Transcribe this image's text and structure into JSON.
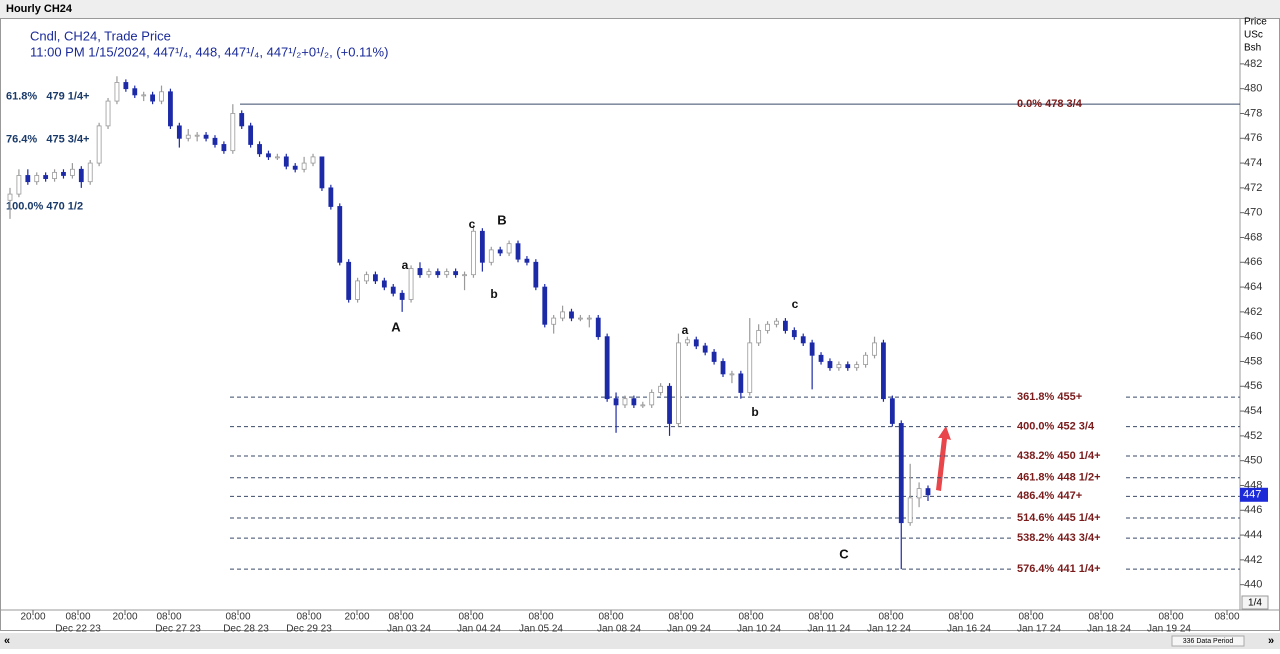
{
  "window_title": "Hourly CH24",
  "chart_data": {
    "type": "candlestick",
    "legend_line1": "Cndl, CH24, Trade Price",
    "legend_line2": "11:00 PM 1/15/2024, 447¹/₄, 448, 447¹/₄, 447¹/₂+0¹/₂, (+0.11%)",
    "axis_title": [
      "Price",
      "USc",
      "Bsh"
    ],
    "ylim": [
      438.2,
      485.7
    ],
    "yticks": [
      440,
      442,
      444,
      446,
      448,
      450,
      452,
      454,
      456,
      458,
      460,
      462,
      464,
      466,
      468,
      470,
      472,
      474,
      476,
      478,
      480,
      482
    ],
    "x_time_labels": [
      "20:00",
      "08:00",
      "20:00",
      "08:00",
      "08:00",
      "08:00",
      "20:00",
      "08:00",
      "08:00",
      "08:00",
      "08:00",
      "08:00",
      "08:00",
      "08:00",
      "08:00",
      "08:00",
      "08:00",
      "08:00",
      "08:00",
      "08:00"
    ],
    "x_date_labels": [
      "Dec 22 23",
      "Dec 27 23",
      "Dec 28 23",
      "Dec 29 23",
      "Jan 03 24",
      "Jan 04 24",
      "Jan 05 24",
      "Jan 08 24",
      "Jan 09 24",
      "Jan 10 24",
      "Jan 11 24",
      "Jan 12 24",
      "Jan 16 24",
      "Jan 17 24",
      "Jan 18 24",
      "Jan 19 24"
    ],
    "up_color": "#9a9a9a",
    "down_color": "#1c2aa8",
    "candles": [
      [
        471,
        472,
        469.5,
        471.5
      ],
      [
        471.5,
        473.5,
        471.25,
        473
      ],
      [
        473,
        473.5,
        472.25,
        472.5
      ],
      [
        472.5,
        473.25,
        472.25,
        473
      ],
      [
        473,
        473.25,
        472.5,
        472.75
      ],
      [
        472.75,
        473.5,
        472.5,
        473.25
      ],
      [
        473.25,
        473.5,
        472.75,
        473
      ],
      [
        473,
        474,
        472.75,
        473.5
      ],
      [
        473.5,
        473.75,
        472,
        472.5
      ],
      [
        472.5,
        474.25,
        472.25,
        474
      ],
      [
        474,
        477.25,
        473.75,
        477
      ],
      [
        477,
        479.25,
        476.75,
        479
      ],
      [
        479,
        481,
        478.75,
        480.5
      ],
      [
        480.5,
        480.75,
        479.75,
        480
      ],
      [
        480,
        480.25,
        479.25,
        479.5
      ],
      [
        479.5,
        479.75,
        479,
        479.5
      ],
      [
        479.5,
        479.75,
        478.75,
        479
      ],
      [
        479,
        480.25,
        478.75,
        479.75
      ],
      [
        479.75,
        480,
        476.75,
        477
      ],
      [
        477,
        477.25,
        475.25,
        476
      ],
      [
        476,
        476.75,
        475.75,
        476.25
      ],
      [
        476.25,
        476.5,
        475.75,
        476.25
      ],
      [
        476.25,
        476.5,
        475.75,
        476
      ],
      [
        476,
        476.25,
        475.25,
        475.5
      ],
      [
        475.5,
        475.75,
        474.75,
        475
      ],
      [
        475,
        478.75,
        474.75,
        478
      ],
      [
        478,
        478.25,
        476.75,
        477
      ],
      [
        477,
        477.25,
        475.25,
        475.5
      ],
      [
        475.5,
        475.75,
        474.5,
        474.75
      ],
      [
        474.75,
        475,
        474.25,
        474.5
      ],
      [
        474.5,
        474.75,
        474.25,
        474.5
      ],
      [
        474.5,
        474.75,
        473.5,
        473.75
      ],
      [
        473.75,
        474,
        473.25,
        473.5
      ],
      [
        473.5,
        474.5,
        473.25,
        474
      ],
      [
        474,
        474.75,
        473.75,
        474.5
      ],
      [
        474.5,
        474.5,
        471.75,
        472
      ],
      [
        472,
        472.25,
        470.25,
        470.5
      ],
      [
        470.5,
        470.75,
        465.75,
        466
      ],
      [
        466,
        466.25,
        462.75,
        463
      ],
      [
        463,
        464.75,
        462.75,
        464.5
      ],
      [
        464.5,
        465.25,
        464.25,
        465
      ],
      [
        465,
        465.25,
        464.25,
        464.5
      ],
      [
        464.5,
        464.75,
        463.75,
        464
      ],
      [
        464,
        464.25,
        463.25,
        463.5
      ],
      [
        463.5,
        463.75,
        462,
        463
      ],
      [
        463,
        465.75,
        462.75,
        465.5
      ],
      [
        465.5,
        466,
        464.75,
        465
      ],
      [
        465,
        465.5,
        464.75,
        465.25
      ],
      [
        465.25,
        465.5,
        464.75,
        465
      ],
      [
        465,
        465.5,
        464.75,
        465.25
      ],
      [
        465.25,
        465.5,
        464.75,
        465
      ],
      [
        465,
        465.25,
        463.75,
        465
      ],
      [
        465,
        469,
        464.75,
        468.5
      ],
      [
        468.5,
        468.75,
        465.25,
        466
      ],
      [
        466,
        467.25,
        465.75,
        467
      ],
      [
        467,
        467.25,
        466.5,
        466.75
      ],
      [
        466.75,
        467.75,
        466.5,
        467.5
      ],
      [
        467.5,
        467.75,
        466,
        466.25
      ],
      [
        466.25,
        466.5,
        465.75,
        466
      ],
      [
        466,
        466.25,
        463.75,
        464
      ],
      [
        464,
        464.25,
        460.75,
        461
      ],
      [
        461,
        461.75,
        460.25,
        461.5
      ],
      [
        461.5,
        462.5,
        461.25,
        462
      ],
      [
        462,
        462.25,
        461.25,
        461.5
      ],
      [
        461.5,
        461.75,
        461.25,
        461.5
      ],
      [
        461.5,
        461.75,
        460.75,
        461.5
      ],
      [
        461.5,
        461.75,
        459.75,
        460
      ],
      [
        460,
        460.25,
        454.75,
        455
      ],
      [
        455,
        455.5,
        452.25,
        454.5
      ],
      [
        454.5,
        455.25,
        454.25,
        455
      ],
      [
        455,
        455.25,
        454.25,
        454.5
      ],
      [
        454.5,
        454.75,
        454.25,
        454.5
      ],
      [
        454.5,
        455.75,
        454.25,
        455.5
      ],
      [
        455.5,
        456.25,
        455.25,
        456
      ],
      [
        456,
        456.25,
        452,
        453
      ],
      [
        453,
        460.25,
        452.75,
        459.5
      ],
      [
        459.5,
        460,
        459.25,
        459.75
      ],
      [
        459.75,
        460,
        459,
        459.25
      ],
      [
        459.25,
        459.5,
        458.5,
        458.75
      ],
      [
        458.75,
        459,
        457.75,
        458
      ],
      [
        458,
        458.25,
        456.75,
        457
      ],
      [
        457,
        457.25,
        456.25,
        457
      ],
      [
        457,
        457.25,
        455,
        455.5
      ],
      [
        455.5,
        461.5,
        455.25,
        459.5
      ],
      [
        459.5,
        461,
        459.25,
        460.5
      ],
      [
        460.5,
        461.25,
        460.25,
        461
      ],
      [
        461,
        461.5,
        460.75,
        461.25
      ],
      [
        461.25,
        461.5,
        460.25,
        460.5
      ],
      [
        460.5,
        460.75,
        459.75,
        460
      ],
      [
        460,
        460.25,
        459.25,
        459.5
      ],
      [
        459.5,
        459.75,
        455.75,
        458.5
      ],
      [
        458.5,
        458.75,
        457.75,
        458
      ],
      [
        458,
        458.25,
        457.25,
        457.5
      ],
      [
        457.5,
        458,
        457.25,
        457.75
      ],
      [
        457.75,
        458,
        457.25,
        457.5
      ],
      [
        457.5,
        458,
        457.25,
        457.75
      ],
      [
        457.75,
        458.75,
        457.5,
        458.5
      ],
      [
        458.5,
        460,
        458.25,
        459.5
      ],
      [
        459.5,
        459.75,
        454.75,
        455
      ],
      [
        455,
        455.25,
        452.75,
        453
      ],
      [
        453,
        453.25,
        441.25,
        445
      ],
      [
        445,
        449.75,
        444.75,
        447
      ],
      [
        447,
        448.25,
        446.25,
        447.75
      ],
      [
        447.75,
        448,
        446.75,
        447.25
      ]
    ],
    "top_level": {
      "value": 478.75,
      "label": "0.0%   478 3/4"
    },
    "fib_levels": [
      {
        "value": 455.125,
        "label": "361.8% 455+"
      },
      {
        "value": 452.75,
        "label": "400.0% 452 3/4"
      },
      {
        "value": 450.375,
        "label": "438.2% 450 1/4+"
      },
      {
        "value": 448.625,
        "label": "461.8% 448 1/2+"
      },
      {
        "value": 447.125,
        "label": "486.4% 447+"
      },
      {
        "value": 445.375,
        "label": "514.6% 445 1/4+"
      },
      {
        "value": 443.75,
        "label": "538.2% 443 3/4+"
      },
      {
        "value": 441.25,
        "label": "576.4% 441 1/4+"
      }
    ],
    "fib_color": "#7a1a1a",
    "left_levels": [
      {
        "value": 479.375,
        "label": "61.8%   479 1/4+"
      },
      {
        "value": 475.875,
        "label": "76.4%   475 3/4+"
      },
      {
        "value": 470.5,
        "label": "100.0% 470 1/2"
      }
    ],
    "last_price": {
      "value": 447.25,
      "label": "447"
    },
    "wave_labels": [
      "A",
      "a",
      "b",
      "c",
      "B",
      "a",
      "b",
      "c",
      "C"
    ]
  },
  "footer": {
    "page": "1/4",
    "periods": "336 Data Period"
  }
}
